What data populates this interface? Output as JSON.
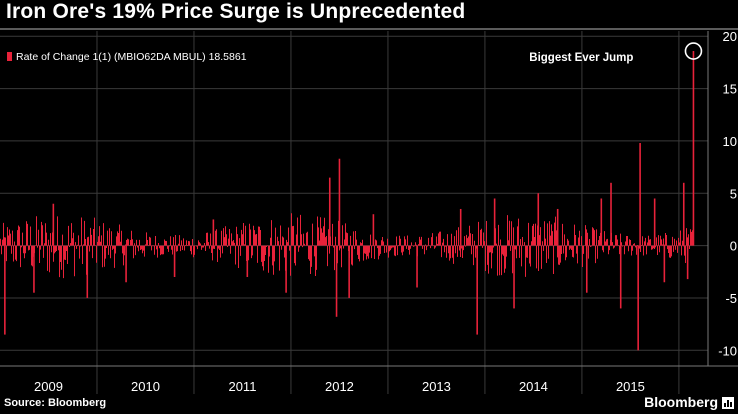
{
  "header": {
    "title": "Iron Ore's 19% Price Surge is Unprecedented"
  },
  "footer": {
    "source": "Source: Bloomberg",
    "brand": "Bloomberg"
  },
  "colors": {
    "background": "#000000",
    "series": "#e8223a",
    "grid": "#3a3a3a",
    "axis_text": "#ffffff"
  },
  "chart_data": {
    "type": "bar",
    "title": "",
    "xlabel": "",
    "ylabel": "",
    "ylim": [
      -11.5,
      20.5
    ],
    "grid": true,
    "legend_position": "top-left",
    "series": [
      {
        "name": "Rate of Change 1(1) (MBIO62DA MBUL)",
        "legend_text": "Rate of Change 1(1) (MBIO62DA MBUL) 18.5861",
        "last_value": 18.5861,
        "spikes": [
          {
            "x": 2008.85,
            "y": -8.5
          },
          {
            "x": 2009.15,
            "y": -4.5
          },
          {
            "x": 2009.7,
            "y": -5.0
          },
          {
            "x": 2009.35,
            "y": 4.0
          },
          {
            "x": 2010.1,
            "y": -3.5
          },
          {
            "x": 2010.6,
            "y": -3.0
          },
          {
            "x": 2011.0,
            "y": 2.5
          },
          {
            "x": 2011.35,
            "y": -3.0
          },
          {
            "x": 2011.75,
            "y": -4.5
          },
          {
            "x": 2012.2,
            "y": 6.5
          },
          {
            "x": 2012.27,
            "y": -6.8
          },
          {
            "x": 2012.3,
            "y": 8.3
          },
          {
            "x": 2012.4,
            "y": -5.0
          },
          {
            "x": 2012.65,
            "y": 3.0
          },
          {
            "x": 2013.1,
            "y": -4.0
          },
          {
            "x": 2013.55,
            "y": 3.5
          },
          {
            "x": 2013.72,
            "y": -8.5
          },
          {
            "x": 2013.9,
            "y": 4.5
          },
          {
            "x": 2014.1,
            "y": -6.0
          },
          {
            "x": 2014.35,
            "y": 5.0
          },
          {
            "x": 2014.55,
            "y": 3.5
          },
          {
            "x": 2014.85,
            "y": -4.5
          },
          {
            "x": 2015.0,
            "y": 4.5
          },
          {
            "x": 2015.1,
            "y": 6.0
          },
          {
            "x": 2015.2,
            "y": -6.0
          },
          {
            "x": 2015.4,
            "y": 9.8
          },
          {
            "x": 2015.38,
            "y": -10.0
          },
          {
            "x": 2015.55,
            "y": 4.5
          },
          {
            "x": 2015.65,
            "y": -3.5
          },
          {
            "x": 2015.85,
            "y": 6.0
          },
          {
            "x": 2015.89,
            "y": -3.2
          },
          {
            "x": 2015.95,
            "y": 18.5861
          }
        ]
      }
    ],
    "x_range": [
      2008.8,
      2016.1
    ],
    "x_ticks": [
      {
        "label": "2009",
        "value": 2009.3
      },
      {
        "label": "2010",
        "value": 2010.3
      },
      {
        "label": "2011",
        "value": 2011.3
      },
      {
        "label": "2012",
        "value": 2012.3
      },
      {
        "label": "2013",
        "value": 2013.3
      },
      {
        "label": "2014",
        "value": 2014.3
      },
      {
        "label": "2015",
        "value": 2015.3
      }
    ],
    "x_dividers": [
      2009.8,
      2010.8,
      2011.8,
      2012.8,
      2013.8,
      2014.8,
      2015.8
    ],
    "y_ticks": [
      20,
      15,
      10,
      5,
      0,
      -5,
      -10
    ],
    "annotations": [
      {
        "text": "Biggest Ever Jump",
        "x": 2015.95,
        "y": 18.5861
      }
    ]
  }
}
